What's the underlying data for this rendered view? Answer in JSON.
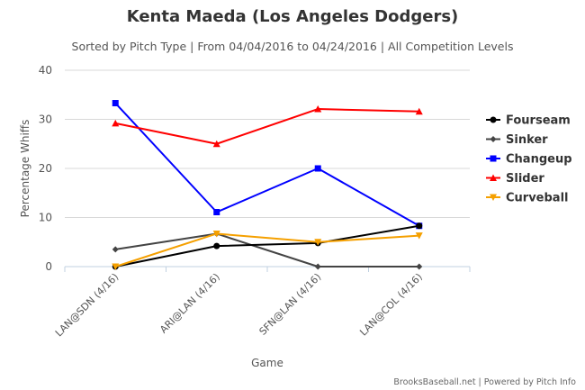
{
  "chart_data": {
    "type": "line",
    "title": "Kenta Maeda (Los Angeles Dodgers)",
    "subtitle": "Sorted by Pitch Type | From 04/04/2016 to 04/24/2016 | All Competition Levels",
    "xlabel": "Game",
    "ylabel": "Percentage Whiffs",
    "categories": [
      "LAN@SDN (4/16)",
      "ARI@LAN (4/16)",
      "SFN@LAN (4/16)",
      "LAN@COL (4/16)"
    ],
    "ylim": [
      0,
      40
    ],
    "yticks": [
      "0",
      "10",
      "20",
      "30",
      "40"
    ],
    "grid": true,
    "legend_position": "right",
    "series": [
      {
        "name": "Fourseam",
        "color": "#000000",
        "marker": "circle",
        "values": [
          0,
          4.2,
          4.8,
          8.3
        ]
      },
      {
        "name": "Sinker",
        "color": "#444444",
        "marker": "diamond",
        "values": [
          3.5,
          6.7,
          0,
          0
        ]
      },
      {
        "name": "Changeup",
        "color": "#0000ff",
        "marker": "square",
        "values": [
          33.3,
          11.1,
          20.0,
          8.3
        ]
      },
      {
        "name": "Slider",
        "color": "#ff0000",
        "marker": "triangle",
        "values": [
          29.2,
          25.0,
          32.1,
          31.6
        ]
      },
      {
        "name": "Curveball",
        "color": "#f5a000",
        "marker": "triangle-down",
        "values": [
          0,
          6.7,
          5.0,
          6.3
        ]
      }
    ]
  },
  "credits": "BrooksBaseball.net | Powered by Pitch Info"
}
